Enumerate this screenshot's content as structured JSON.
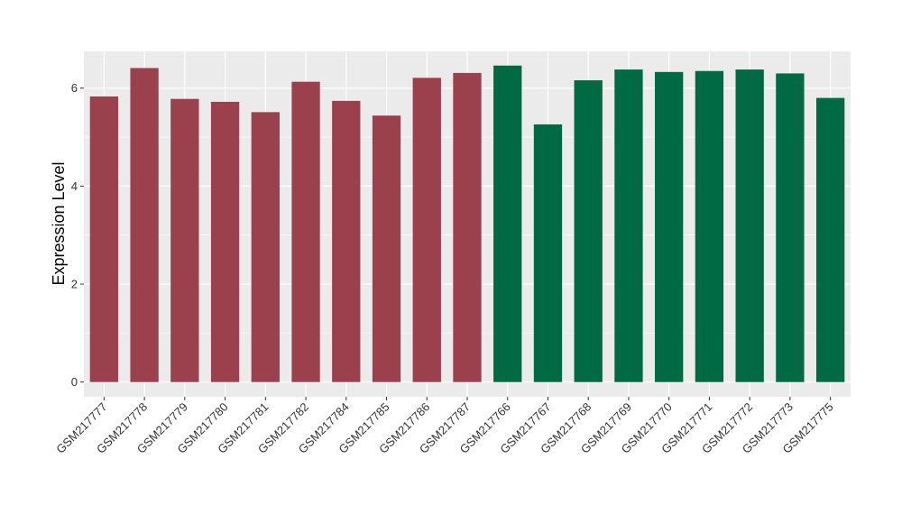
{
  "chart_data": {
    "type": "bar",
    "title": "",
    "xlabel": "",
    "ylabel": "Expression Level",
    "ylim": [
      -0.3,
      6.75
    ],
    "yticks": [
      0,
      2,
      4,
      6
    ],
    "grid": true,
    "legend": "none",
    "categories": [
      "GSM217777",
      "GSM217778",
      "GSM217779",
      "GSM217780",
      "GSM217781",
      "GSM217782",
      "GSM217784",
      "GSM217785",
      "GSM217786",
      "GSM217787",
      "GSM217766",
      "GSM217767",
      "GSM217768",
      "GSM217769",
      "GSM217770",
      "GSM217771",
      "GSM217772",
      "GSM217773",
      "GSM217775"
    ],
    "values": [
      5.83,
      6.41,
      5.78,
      5.72,
      5.51,
      6.13,
      5.74,
      5.44,
      6.21,
      6.31,
      6.46,
      5.26,
      6.16,
      6.38,
      6.33,
      6.35,
      6.38,
      6.3,
      5.8
    ],
    "bar_colors": [
      "#9b404d",
      "#9b404d",
      "#9b404d",
      "#9b404d",
      "#9b404d",
      "#9b404d",
      "#9b404d",
      "#9b404d",
      "#9b404d",
      "#9b404d",
      "#006a45",
      "#006a45",
      "#006a45",
      "#006a45",
      "#006a45",
      "#006a45",
      "#006a45",
      "#006a45",
      "#006a45"
    ],
    "panel_color": "#ebebeb",
    "grid_color": "#ffffff"
  }
}
